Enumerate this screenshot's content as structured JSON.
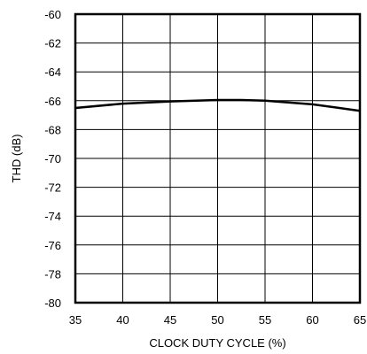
{
  "chart_data": {
    "type": "line",
    "title": "",
    "xlabel": "CLOCK DUTY CYCLE (%)",
    "ylabel": "THD (dB)",
    "xlim": [
      35,
      65
    ],
    "ylim": [
      -80,
      -60
    ],
    "x_ticks": [
      "35",
      "40",
      "45",
      "50",
      "55",
      "60",
      "65"
    ],
    "y_ticks": [
      "-60",
      "-62",
      "-64",
      "-66",
      "-68",
      "-70",
      "-72",
      "-74",
      "-76",
      "-78",
      "-80"
    ],
    "grid": true,
    "legend": "none",
    "series": [
      {
        "x": [
          35,
          40,
          45,
          50,
          52.5,
          55,
          60,
          65
        ],
        "y": [
          -66.5,
          -66.2,
          -66.05,
          -65.95,
          -65.95,
          -66.0,
          -66.25,
          -66.7
        ]
      }
    ],
    "colors": {
      "line": "#000000",
      "grid": "#000000",
      "frame": "#000000"
    }
  }
}
